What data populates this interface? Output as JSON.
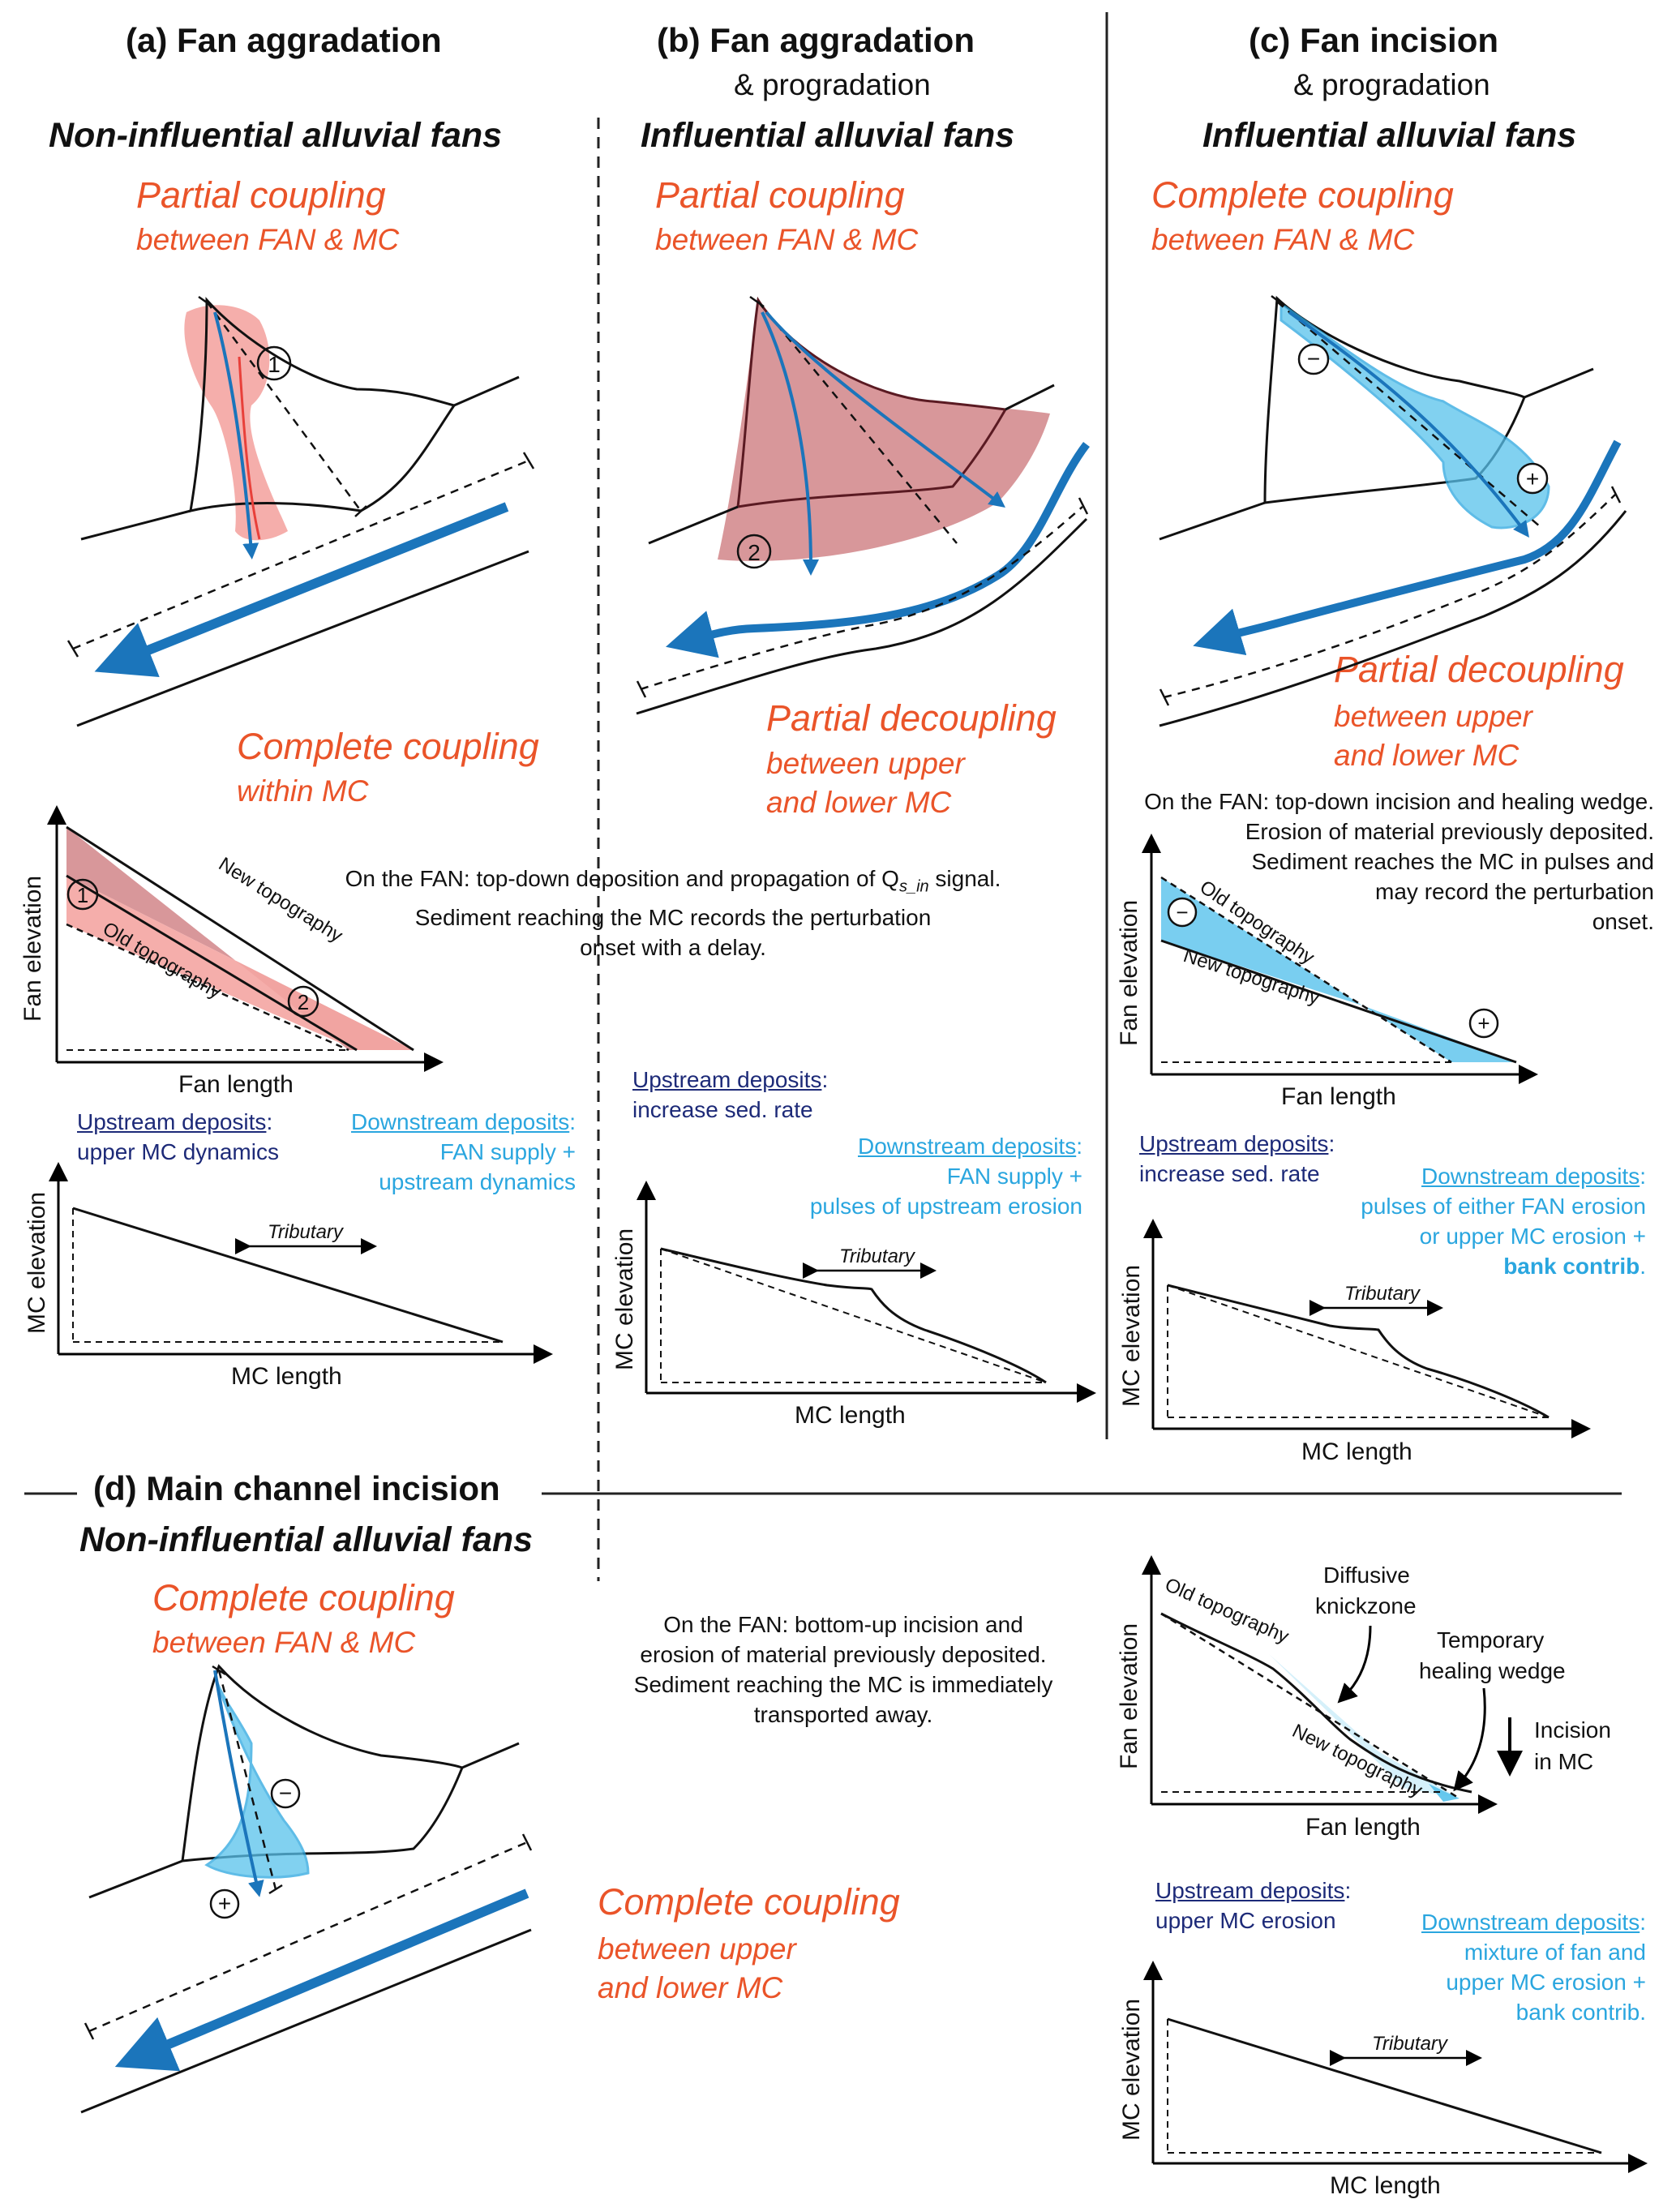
{
  "colors": {
    "orange": "#ea5429",
    "blue": "#1b75bb",
    "lightblue": "#58c2ec",
    "pink": "#f4a5a2",
    "darkpink": "#d48c8f",
    "navy": "#1d2a78",
    "cyan": "#2aa6df"
  },
  "panel_a": {
    "title": "(a) Fan aggradation",
    "fan_type": "Non-influential alluvial fans",
    "coupling_top": "Partial coupling",
    "coupling_top_sub": "between FAN & MC",
    "coupling_bottom": "Complete coupling",
    "coupling_bottom_sub": "within MC",
    "marker": "1",
    "fan_plot": {
      "ylabel": "Fan elevation",
      "xlabel": "Fan length",
      "old": "Old topography",
      "new": "New topography",
      "m1": "1",
      "m2": "2"
    },
    "mc_plot": {
      "ylabel": "MC elevation",
      "xlabel": "MC length",
      "tributary": "Tributary"
    },
    "upstream_label": "Upstream deposits",
    "upstream_text": "upper MC dynamics",
    "downstream_label": "Downstream deposits",
    "downstream_text1": "FAN supply +",
    "downstream_text2": "upstream dynamics"
  },
  "panel_b": {
    "title": "(b) Fan aggradation",
    "subtitle": "& progradation",
    "fan_type": "Influential alluvial fans",
    "coupling_top": "Partial coupling",
    "coupling_top_sub": "between FAN & MC",
    "coupling_bottom": "Partial decoupling",
    "coupling_bottom_sub1": "between upper",
    "coupling_bottom_sub2": "and lower MC",
    "marker": "2",
    "desc_line1": "On the FAN: top-down deposition and propagation of Q",
    "desc_q_sub": "s_in",
    "desc_line1_end": " signal.",
    "desc_line2": "Sediment reaching the MC records the perturbation",
    "desc_line3": "onset with a delay.",
    "upstream_label": "Upstream deposits",
    "upstream_text": "increase sed. rate",
    "downstream_label": "Downstream deposits",
    "downstream_text1": "FAN supply +",
    "downstream_text2": "pulses of upstream erosion",
    "mc_plot": {
      "ylabel": "MC elevation",
      "xlabel": "MC length",
      "tributary": "Tributary"
    }
  },
  "panel_c": {
    "title": "(c) Fan incision",
    "subtitle": "& progradation",
    "fan_type": "Influential alluvial fans",
    "coupling_top": "Complete coupling",
    "coupling_top_sub": "between FAN & MC",
    "coupling_bottom": "Partial decoupling",
    "coupling_bottom_sub1": "between upper",
    "coupling_bottom_sub2": "and lower MC",
    "minus": "−",
    "plus": "+",
    "desc1": "On the FAN: top-down incision and healing wedge.",
    "desc2": "Erosion of material previously deposited.",
    "desc3": "Sediment reaches the MC in pulses and",
    "desc4": "may record the perturbation",
    "desc5": "onset.",
    "fan_plot": {
      "ylabel": "Fan elevation",
      "xlabel": "Fan length",
      "old": "Old topography",
      "new": "New topography"
    },
    "upstream_label": "Upstream deposits",
    "upstream_text": "increase sed. rate",
    "downstream_label": "Downstream deposits",
    "downstream_text1": "pulses of either FAN erosion",
    "downstream_text2": "or upper MC erosion +",
    "downstream_text3": "bank contrib",
    "mc_plot": {
      "ylabel": "MC elevation",
      "xlabel": "MC length",
      "tributary": "Tributary"
    }
  },
  "panel_d": {
    "title": "(d) Main channel incision",
    "fan_type": "Non-influential alluvial fans",
    "coupling_top": "Complete coupling",
    "coupling_top_sub": "between FAN & MC",
    "coupling_bottom": "Complete coupling",
    "coupling_bottom_sub1": "between upper",
    "coupling_bottom_sub2": "and lower MC",
    "desc1": "On the FAN: bottom-up incision and",
    "desc2": "erosion of material previously deposited.",
    "desc3": "Sediment reaching the MC is immediately",
    "desc4": "transported away.",
    "fan_plot": {
      "ylabel": "Fan elevation",
      "xlabel": "Fan length",
      "old": "Old topography",
      "new": "New topography",
      "knick1": "Diffusive",
      "knick2": "knickzone",
      "heal1": "Temporary",
      "heal2": "healing wedge",
      "inc1": "Incision",
      "inc2": "in MC"
    },
    "upstream_label": "Upstream deposits",
    "upstream_text": "upper MC erosion",
    "downstream_label": "Downstream deposits",
    "downstream_text1": "mixture of fan and",
    "downstream_text2": "upper MC erosion +",
    "downstream_text3": "bank contrib.",
    "mc_plot": {
      "ylabel": "MC elevation",
      "xlabel": "MC length",
      "tributary": "Tributary"
    }
  }
}
